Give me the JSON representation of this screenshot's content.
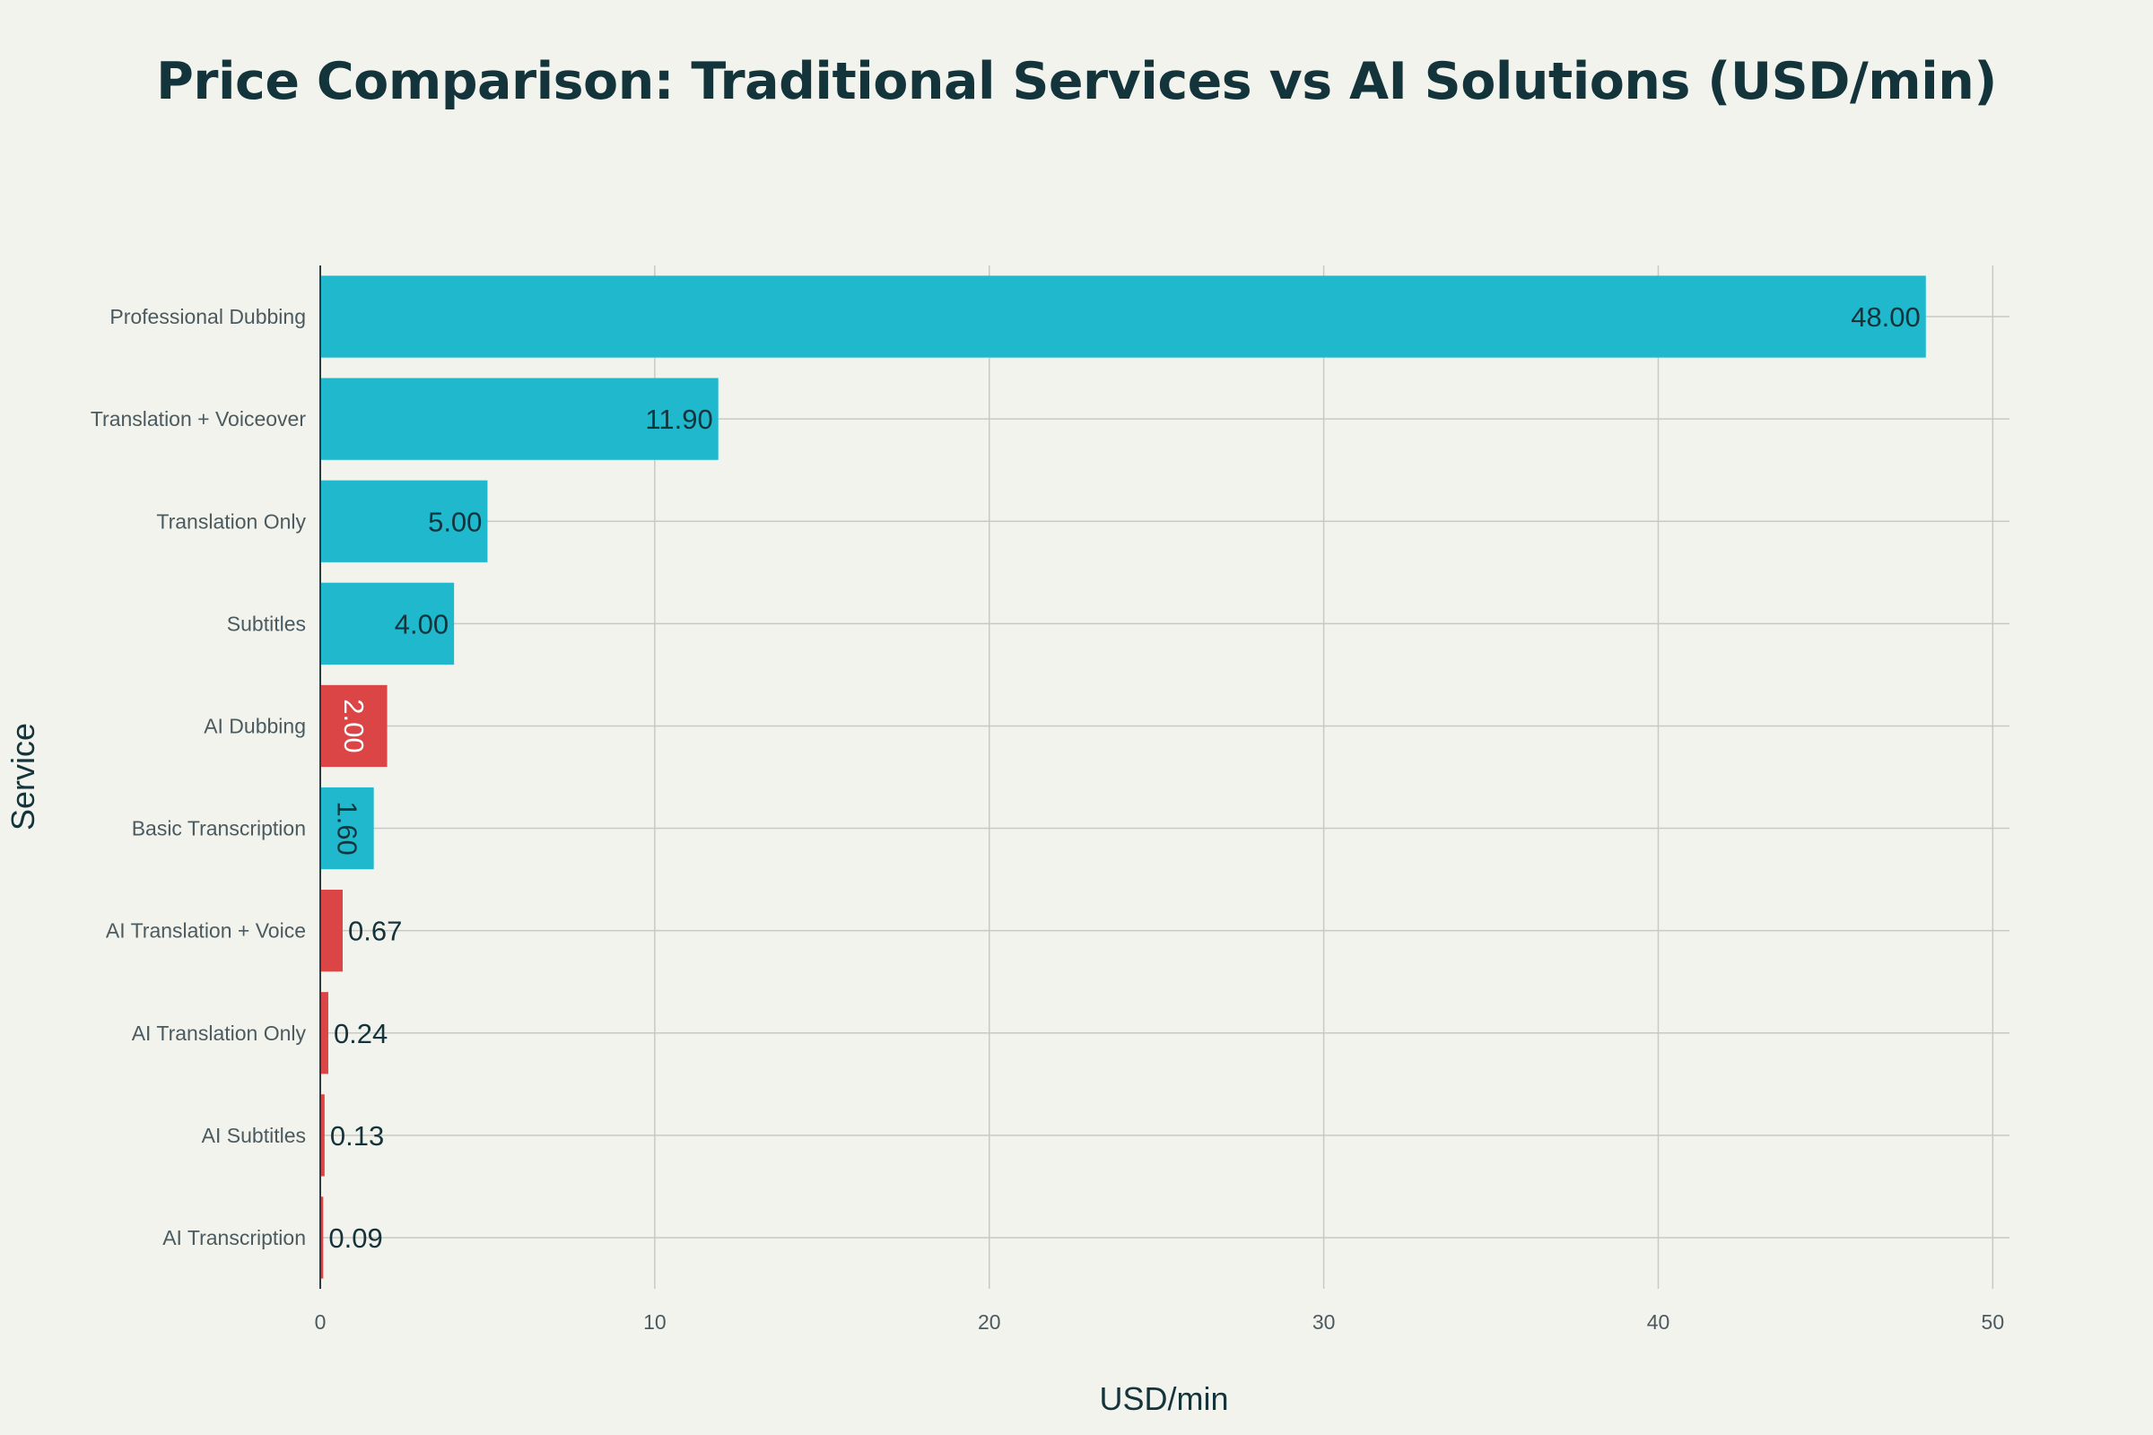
{
  "chart_data": {
    "type": "bar",
    "orientation": "horizontal",
    "title": "Price Comparison: Traditional Services vs AI Solutions (USD/min)",
    "xlabel": "USD/min",
    "ylabel": "Service",
    "xlim": [
      0,
      50.5
    ],
    "xticks": [
      0,
      10,
      20,
      30,
      40,
      50
    ],
    "grid": true,
    "legend": "none",
    "colors": {
      "traditional": "#1fb8cd",
      "ai": "#db4545",
      "label_dark": "#13343b",
      "label_light": "#ffffff",
      "grid": "#c8c9c4",
      "axis": "#2c3e44"
    },
    "categories": [
      "Professional Dubbing",
      "Translation + Voiceover",
      "Translation Only",
      "Subtitles",
      "AI Dubbing",
      "Basic Transcription",
      "AI Translation + Voice",
      "AI Translation Only",
      "AI Subtitles",
      "AI Transcription"
    ],
    "values": [
      48.0,
      11.9,
      5.0,
      4.0,
      2.0,
      1.6,
      0.67,
      0.24,
      0.13,
      0.09
    ],
    "value_labels": [
      "48.00",
      "11.90",
      "5.00",
      "4.00",
      "2.00",
      "1.60",
      "0.67",
      "0.24",
      "0.13",
      "0.09"
    ],
    "group": [
      "traditional",
      "traditional",
      "traditional",
      "traditional",
      "ai",
      "traditional",
      "ai",
      "ai",
      "ai",
      "ai"
    ]
  }
}
